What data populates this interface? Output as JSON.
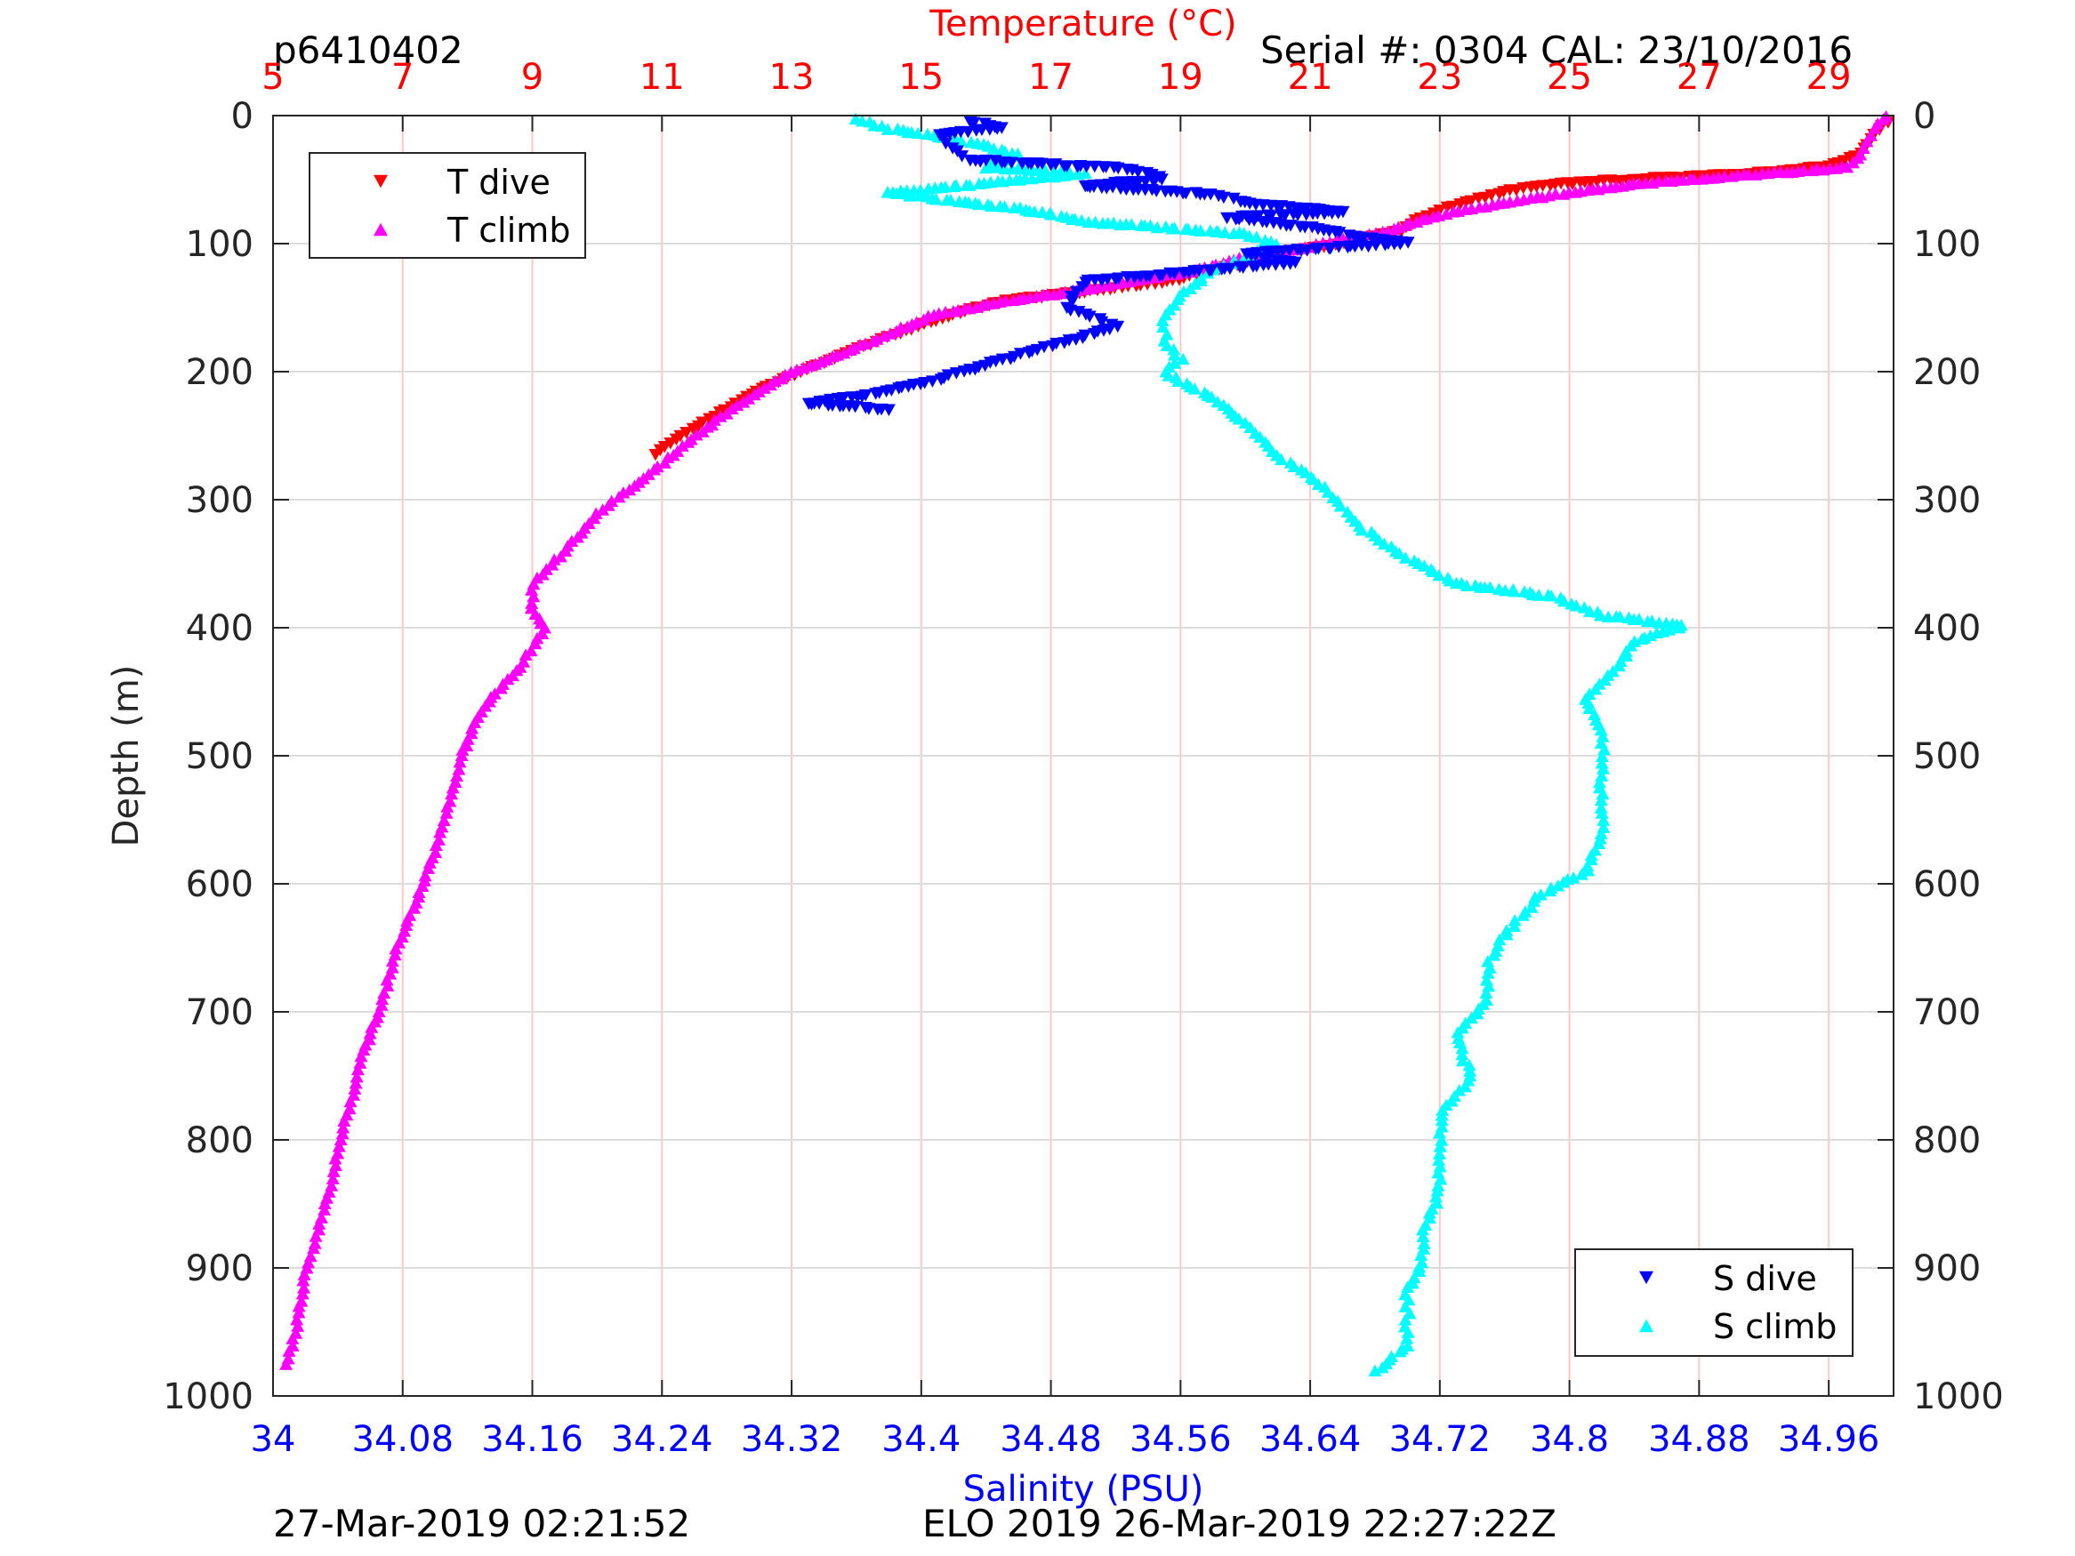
{
  "header": {
    "profile_id": "p6410402",
    "serial_cal": "Serial #: 0304  CAL: 23/10/2016"
  },
  "footer": {
    "left_timestamp": "27-Mar-2019 02:21:52",
    "right_mission": "ELO 2019 26-Mar-2019 22:27:22Z"
  },
  "colors": {
    "t_dive": "#ff0000",
    "t_climb": "#ff00ff",
    "s_dive": "#0000ff",
    "s_climb": "#00ffff",
    "temperature_axis": "#ff0000",
    "salinity_axis": "#0000ff",
    "depth_axis": "#262626"
  },
  "chart_data": {
    "type": "scatter",
    "x_axis_salinity": {
      "label": "Salinity (PSU)",
      "range": [
        34,
        35
      ],
      "ticks": [
        "34",
        "34.08",
        "34.16",
        "34.24",
        "34.32",
        "34.4",
        "34.48",
        "34.56",
        "34.64",
        "34.72",
        "34.8",
        "34.88",
        "34.96"
      ],
      "tick_values": [
        34,
        34.08,
        34.16,
        34.24,
        34.32,
        34.4,
        34.48,
        34.56,
        34.64,
        34.72,
        34.8,
        34.88,
        34.96
      ]
    },
    "x_axis_temperature": {
      "label": "Temperature (°C)",
      "range": [
        5,
        30
      ],
      "ticks": [
        "5",
        "7",
        "9",
        "11",
        "13",
        "15",
        "17",
        "19",
        "21",
        "23",
        "25",
        "27",
        "29"
      ],
      "tick_values": [
        5,
        7,
        9,
        11,
        13,
        15,
        17,
        19,
        21,
        23,
        25,
        27,
        29
      ]
    },
    "y_axis": {
      "label": "Depth (m)",
      "range": [
        0,
        1000
      ],
      "reversed": true,
      "ticks": [
        "0",
        "100",
        "200",
        "300",
        "400",
        "500",
        "600",
        "700",
        "800",
        "900",
        "1000"
      ],
      "tick_values": [
        0,
        100,
        200,
        300,
        400,
        500,
        600,
        700,
        800,
        900,
        1000
      ]
    },
    "grid": "on (vertical red at temperature ticks, horizontal gray at depth ticks)",
    "legends": [
      {
        "placement": "top-left",
        "entries": [
          {
            "name": "T dive",
            "series": "t_dive"
          },
          {
            "name": "T climb",
            "series": "t_climb"
          }
        ]
      },
      {
        "placement": "bottom-right",
        "entries": [
          {
            "name": "S dive",
            "series": "s_dive"
          },
          {
            "name": "S climb",
            "series": "s_climb"
          }
        ]
      }
    ],
    "series": [
      {
        "key": "t_dive",
        "name": "T dive",
        "axis": "temperature",
        "marker": "triangle-down",
        "points": [
          [
            29.9,
            5
          ],
          [
            29.7,
            15
          ],
          [
            29.5,
            30
          ],
          [
            29.0,
            40
          ],
          [
            28.0,
            45
          ],
          [
            26.0,
            50
          ],
          [
            24.5,
            55
          ],
          [
            24.0,
            60
          ],
          [
            23.6,
            65
          ],
          [
            23.1,
            72
          ],
          [
            22.7,
            80
          ],
          [
            22.4,
            90
          ],
          [
            21.5,
            100
          ],
          [
            20.3,
            110
          ],
          [
            19.6,
            120
          ],
          [
            18.8,
            130
          ],
          [
            18.0,
            135
          ],
          [
            16.3,
            145
          ],
          [
            15.5,
            155
          ],
          [
            14.4,
            175
          ],
          [
            13.4,
            195
          ],
          [
            12.7,
            210
          ],
          [
            12.3,
            220
          ],
          [
            11.8,
            235
          ],
          [
            11.3,
            250
          ],
          [
            10.9,
            265
          ]
        ]
      },
      {
        "key": "t_climb",
        "name": "T climb",
        "axis": "temperature",
        "marker": "triangle-up",
        "points": [
          [
            29.9,
            0
          ],
          [
            29.7,
            10
          ],
          [
            29.6,
            20
          ],
          [
            29.5,
            30
          ],
          [
            29.3,
            40
          ],
          [
            27.5,
            47
          ],
          [
            26.0,
            53
          ],
          [
            25.0,
            60
          ],
          [
            24.2,
            66
          ],
          [
            23.5,
            72
          ],
          [
            22.8,
            80
          ],
          [
            22.2,
            90
          ],
          [
            21.5,
            96
          ],
          [
            21.0,
            102
          ],
          [
            20.0,
            110
          ],
          [
            19.3,
            120
          ],
          [
            18.4,
            128
          ],
          [
            17.6,
            135
          ],
          [
            16.5,
            143
          ],
          [
            15.2,
            155
          ],
          [
            14.6,
            168
          ],
          [
            13.8,
            185
          ],
          [
            13.0,
            200
          ],
          [
            12.5,
            215
          ],
          [
            11.9,
            235
          ],
          [
            11.4,
            255
          ],
          [
            10.8,
            280
          ],
          [
            10.0,
            310
          ],
          [
            9.5,
            340
          ],
          [
            9.0,
            365
          ],
          [
            9.0,
            385
          ],
          [
            9.2,
            400
          ],
          [
            8.8,
            430
          ],
          [
            8.2,
            465
          ],
          [
            7.9,
            500
          ],
          [
            7.7,
            540
          ],
          [
            7.5,
            575
          ],
          [
            7.2,
            615
          ],
          [
            6.9,
            650
          ],
          [
            6.7,
            690
          ],
          [
            6.4,
            730
          ],
          [
            6.2,
            770
          ],
          [
            6.0,
            805
          ],
          [
            5.9,
            835
          ],
          [
            5.7,
            870
          ],
          [
            5.5,
            905
          ],
          [
            5.4,
            935
          ],
          [
            5.3,
            960
          ],
          [
            5.2,
            975
          ]
        ]
      },
      {
        "key": "s_dive",
        "name": "S dive",
        "axis": "salinity",
        "marker": "triangle-down",
        "points": [
          [
            34.43,
            5
          ],
          [
            34.45,
            10
          ],
          [
            34.41,
            15
          ],
          [
            34.42,
            25
          ],
          [
            34.43,
            35
          ],
          [
            34.53,
            42
          ],
          [
            34.55,
            50
          ],
          [
            34.5,
            55
          ],
          [
            34.58,
            62
          ],
          [
            34.6,
            68
          ],
          [
            34.63,
            72
          ],
          [
            34.66,
            76
          ],
          [
            34.59,
            80
          ],
          [
            34.64,
            88
          ],
          [
            34.67,
            95
          ],
          [
            34.7,
            100
          ],
          [
            34.6,
            108
          ],
          [
            34.63,
            115
          ],
          [
            34.5,
            130
          ],
          [
            34.49,
            150
          ],
          [
            34.52,
            165
          ],
          [
            34.48,
            180
          ],
          [
            34.44,
            195
          ],
          [
            34.4,
            210
          ],
          [
            34.36,
            220
          ],
          [
            34.33,
            225
          ],
          [
            34.38,
            230
          ]
        ]
      },
      {
        "key": "s_climb",
        "name": "S climb",
        "axis": "salinity",
        "marker": "triangle-up",
        "points": [
          [
            34.36,
            2
          ],
          [
            34.38,
            10
          ],
          [
            34.43,
            20
          ],
          [
            34.46,
            30
          ],
          [
            34.44,
            40
          ],
          [
            34.5,
            45
          ],
          [
            34.38,
            60
          ],
          [
            34.46,
            72
          ],
          [
            34.5,
            82
          ],
          [
            34.6,
            92
          ],
          [
            34.62,
            100
          ],
          [
            34.58,
            120
          ],
          [
            34.56,
            140
          ],
          [
            34.55,
            155
          ],
          [
            34.55,
            175
          ],
          [
            34.56,
            190
          ],
          [
            34.55,
            200
          ],
          [
            34.58,
            220
          ],
          [
            34.6,
            240
          ],
          [
            34.62,
            265
          ],
          [
            34.65,
            290
          ],
          [
            34.67,
            320
          ],
          [
            34.7,
            345
          ],
          [
            34.73,
            365
          ],
          [
            34.79,
            375
          ],
          [
            34.82,
            390
          ],
          [
            34.87,
            398
          ],
          [
            34.84,
            410
          ],
          [
            34.83,
            430
          ],
          [
            34.81,
            455
          ],
          [
            34.82,
            480
          ],
          [
            34.82,
            520
          ],
          [
            34.82,
            560
          ],
          [
            34.81,
            590
          ],
          [
            34.78,
            610
          ],
          [
            34.76,
            640
          ],
          [
            34.75,
            660
          ],
          [
            34.75,
            690
          ],
          [
            34.73,
            720
          ],
          [
            34.74,
            750
          ],
          [
            34.72,
            780
          ],
          [
            34.72,
            810
          ],
          [
            34.72,
            840
          ],
          [
            34.71,
            870
          ],
          [
            34.71,
            895
          ],
          [
            34.7,
            915
          ],
          [
            34.7,
            940
          ],
          [
            34.7,
            960
          ],
          [
            34.68,
            980
          ]
        ]
      }
    ]
  }
}
